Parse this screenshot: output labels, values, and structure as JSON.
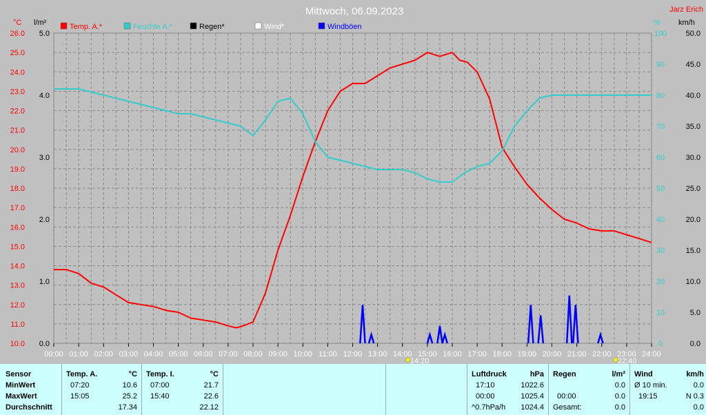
{
  "title": "Mittwoch, 06.09.2023",
  "author": "Jarz Erich",
  "units": {
    "left_temp": "°C",
    "left_rain": "l/m²",
    "right_pct": "%",
    "right_speed": "km/h"
  },
  "legend": [
    {
      "label": "Temp. A.*",
      "color": "#ff0000"
    },
    {
      "label": "Feuchte A.*",
      "color": "#33cccc"
    },
    {
      "label": "Regen*",
      "color": "#000000"
    },
    {
      "label": "Wind*",
      "color": "#ffffff"
    },
    {
      "label": "Windböen",
      "color": "#0000ff"
    }
  ],
  "colors": {
    "background": "#c0c0c0",
    "plot_bg": "#c0c0c0",
    "grid": "#808080",
    "table_bg": "#ccffff"
  },
  "markers": [
    "14:20",
    "22:40"
  ],
  "chart_data": {
    "type": "line",
    "title": "Mittwoch, 06.09.2023",
    "x_ticks": [
      "00:00",
      "01:00",
      "02:00",
      "03:00",
      "04:00",
      "05:00",
      "06:00",
      "07:00",
      "08:00",
      "09:00",
      "10:00",
      "11:00",
      "12:00",
      "13:00",
      "14:00",
      "15:00",
      "16:00",
      "17:00",
      "18:00",
      "19:00",
      "20:00",
      "21:00",
      "22:00",
      "23:00",
      "24:00"
    ],
    "xlim": [
      0,
      24
    ],
    "axes": {
      "temp": {
        "range": [
          10.0,
          26.0
        ],
        "ticks": [
          "10.0",
          "11.0",
          "12.0",
          "13.0",
          "14.0",
          "15.0",
          "16.0",
          "17.0",
          "18.0",
          "19.0",
          "20.0",
          "21.0",
          "22.0",
          "23.0",
          "24.0",
          "25.0",
          "26.0"
        ]
      },
      "rain": {
        "range": [
          0,
          5
        ],
        "ticks": [
          "0.0",
          "1.0",
          "2.0",
          "3.0",
          "4.0",
          "5.0"
        ]
      },
      "humidity": {
        "range": [
          0,
          100
        ],
        "ticks": [
          "0",
          "10",
          "20",
          "30",
          "40",
          "50",
          "60",
          "70",
          "80",
          "90",
          "100"
        ]
      },
      "speed": {
        "range": [
          0,
          50
        ],
        "ticks": [
          "0.0",
          "5.0",
          "10.0",
          "15.0",
          "20.0",
          "25.0",
          "30.0",
          "35.0",
          "40.0",
          "45.0",
          "50.0"
        ]
      }
    },
    "series": [
      {
        "name": "Temp. A.*",
        "axis": "temp",
        "color": "#ff0000",
        "x": [
          0.0,
          0.5,
          1.0,
          1.5,
          2.0,
          2.5,
          3.0,
          3.5,
          4.0,
          4.5,
          5.0,
          5.5,
          6.0,
          6.5,
          7.0,
          7.33,
          7.6,
          8.0,
          8.5,
          9.0,
          9.5,
          10.0,
          10.5,
          11.0,
          11.5,
          12.0,
          12.5,
          13.0,
          13.5,
          14.0,
          14.5,
          15.0,
          15.5,
          16.0,
          16.3,
          16.6,
          17.0,
          17.5,
          18.0,
          18.5,
          19.0,
          19.5,
          20.0,
          20.5,
          21.0,
          21.5,
          22.0,
          22.5,
          23.0,
          23.5,
          24.0
        ],
        "y": [
          13.8,
          13.8,
          13.6,
          13.1,
          12.9,
          12.5,
          12.1,
          12.0,
          11.9,
          11.7,
          11.6,
          11.3,
          11.2,
          11.1,
          10.9,
          10.8,
          10.9,
          11.1,
          12.6,
          14.8,
          16.6,
          18.6,
          20.4,
          22.0,
          23.0,
          23.4,
          23.4,
          23.8,
          24.2,
          24.4,
          24.6,
          25.0,
          24.8,
          25.0,
          24.6,
          24.5,
          24.0,
          22.6,
          20.1,
          19.1,
          18.2,
          17.5,
          16.9,
          16.4,
          16.2,
          15.9,
          15.8,
          15.8,
          15.6,
          15.4,
          15.2
        ]
      },
      {
        "name": "Feuchte A.*",
        "axis": "humidity",
        "color": "#33cccc",
        "x": [
          0.0,
          0.5,
          1.0,
          1.5,
          2.0,
          2.5,
          3.0,
          3.5,
          4.0,
          4.5,
          5.0,
          5.5,
          6.0,
          6.5,
          7.0,
          7.5,
          8.0,
          8.5,
          9.0,
          9.5,
          10.0,
          10.5,
          11.0,
          11.5,
          12.0,
          12.5,
          13.0,
          13.5,
          14.0,
          14.5,
          15.0,
          15.5,
          16.0,
          16.5,
          17.0,
          17.5,
          18.0,
          18.5,
          19.0,
          19.5,
          20.0,
          20.5,
          21.0,
          22.0,
          23.0,
          24.0
        ],
        "y": [
          82,
          82,
          82,
          81,
          80,
          79,
          78,
          77,
          76,
          75,
          74,
          74,
          73,
          72,
          71,
          70,
          67,
          72,
          78,
          79,
          74,
          65,
          60,
          59,
          58,
          57,
          56,
          56,
          56,
          55,
          53,
          52,
          52,
          55,
          57,
          58,
          62,
          70,
          75,
          79,
          80,
          80,
          80,
          80,
          80,
          80
        ]
      },
      {
        "name": "Windböen",
        "axis": "speed",
        "color": "#0000ff",
        "bursts": [
          {
            "x": 12.4,
            "y": 6.2
          },
          {
            "x": 12.75,
            "y": 1.4
          },
          {
            "x": 15.1,
            "y": 1.4
          },
          {
            "x": 15.5,
            "y": 2.8
          },
          {
            "x": 15.7,
            "y": 1.4
          },
          {
            "x": 19.15,
            "y": 6.2
          },
          {
            "x": 19.55,
            "y": 4.5
          },
          {
            "x": 20.7,
            "y": 7.7
          },
          {
            "x": 20.95,
            "y": 6.2
          },
          {
            "x": 21.95,
            "y": 1.4
          }
        ]
      }
    ]
  },
  "table": {
    "labels": {
      "sensor": "Sensor",
      "min": "MinWert",
      "max": "MaxWert",
      "avg": "Durchschnitt"
    },
    "temp_a": {
      "hdr": "Temp. A.",
      "unit": "°C",
      "min_time": "07:20",
      "min_val": "10.6",
      "max_time": "15:05",
      "max_val": "25.2",
      "avg": "17.34"
    },
    "temp_i": {
      "hdr": "Temp. I.",
      "unit": "°C",
      "min_time": "07:00",
      "min_val": "21.7",
      "max_time": "15:40",
      "max_val": "22.6",
      "avg": "22.12"
    },
    "pressure": {
      "hdr": "Luftdruck",
      "unit": "hPa",
      "min_time": "17:10",
      "min_val": "1022.6",
      "max_time": "00:00",
      "max_val": "1025.4",
      "avg_label": "^0.7hPa/h",
      "avg": "1024.4"
    },
    "rain": {
      "hdr": "Regen",
      "unit": "l/m²",
      "r1_val": "0.0",
      "r2_time": "00:00",
      "r2_val": "0.0",
      "total_label": "Gesamt:",
      "total": "0.0"
    },
    "wind": {
      "hdr": "Wind",
      "unit": "km/h",
      "r1_label": "Ø 10 min.",
      "r1_val": "0.0",
      "r2_time": "19:15",
      "r2_val": "N 0.3",
      "r3_val": "0.0"
    }
  }
}
